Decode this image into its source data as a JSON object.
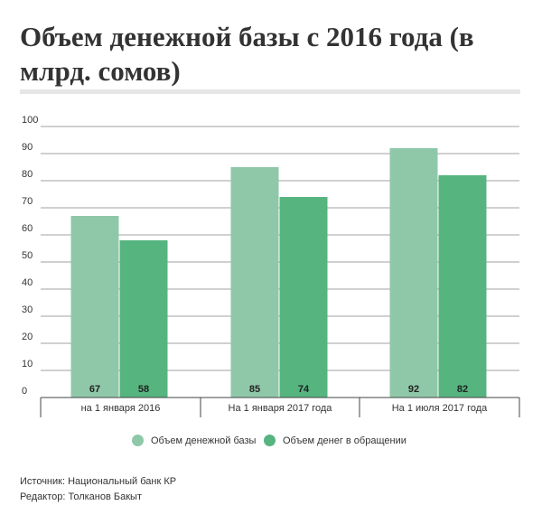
{
  "title": "Объем денежной базы с 2016 года (в млрд. сомов)",
  "footer": {
    "source": "Источник: Национальный банк КР",
    "editor": "Редактор: Толканов Бакыт"
  },
  "colors": {
    "series1": "#8fc8a8",
    "series2": "#56b47f",
    "grid": "#444444",
    "text": "#333333"
  },
  "chart_data": {
    "type": "bar",
    "title": "Объем денежной базы с 2016 года (в млрд. сомов)",
    "categories": [
      "на 1 января 2016",
      "На 1 января 2017 года",
      "На 1 июля 2017 года"
    ],
    "series": [
      {
        "name": "Объем денежной базы",
        "values": [
          67,
          85,
          92
        ]
      },
      {
        "name": "Объем денег в обращении",
        "values": [
          58,
          74,
          82
        ]
      }
    ],
    "ylim": [
      0,
      100
    ],
    "yticks": [
      0,
      10,
      20,
      30,
      40,
      50,
      60,
      70,
      80,
      90,
      100
    ],
    "grid": true,
    "legend_position": "bottom"
  }
}
